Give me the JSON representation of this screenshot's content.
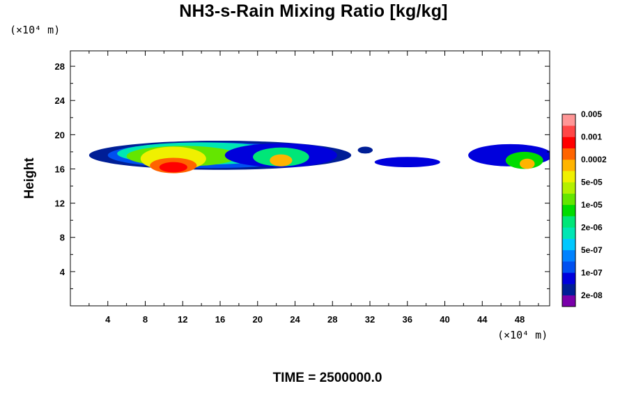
{
  "chart_data": {
    "type": "heatmap",
    "title": "NH3-s-Rain Mixing Ratio [kg/kg]",
    "ylabel": "Height",
    "xlabel": "",
    "x_unit": "(×10⁴ m)",
    "y_unit": "(×10⁴ m)",
    "footer": "TIME = 2500000.0",
    "xlim": [
      0,
      51.2
    ],
    "ylim": [
      0,
      29.8
    ],
    "x_ticks": [
      4,
      8,
      12,
      16,
      20,
      24,
      28,
      32,
      36,
      40,
      44,
      48
    ],
    "y_ticks": [
      4,
      8,
      12,
      16,
      20,
      24,
      28
    ],
    "colorbar": {
      "colors": [
        "#7a00aa",
        "#001e96",
        "#0000dc",
        "#0050f0",
        "#0082ff",
        "#00c8ff",
        "#00e6b4",
        "#00e678",
        "#00dc00",
        "#64e600",
        "#b4f000",
        "#f0f000",
        "#ffb400",
        "#ff6400",
        "#ff0000",
        "#ff4646",
        "#ff9696"
      ],
      "labels": [
        "2e-08",
        "1e-07",
        "5e-07",
        "2e-06",
        "1e-05",
        "5e-05",
        "0.0002",
        "0.001",
        "0.005"
      ]
    },
    "blobs": [
      {
        "x": 16,
        "y": 17.6,
        "rx": 14,
        "ry": 1.7,
        "level": 1
      },
      {
        "x": 15,
        "y": 17.6,
        "rx": 11,
        "ry": 1.5,
        "level": 3
      },
      {
        "x": 14,
        "y": 17.8,
        "rx": 9,
        "ry": 1.3,
        "level": 6
      },
      {
        "x": 12,
        "y": 17.5,
        "rx": 6,
        "ry": 1.2,
        "level": 9
      },
      {
        "x": 11,
        "y": 17.2,
        "rx": 3.5,
        "ry": 1.4,
        "level": 11
      },
      {
        "x": 11,
        "y": 16.4,
        "rx": 2.5,
        "ry": 0.9,
        "level": 13
      },
      {
        "x": 11,
        "y": 16.2,
        "rx": 1.5,
        "ry": 0.6,
        "level": 14
      },
      {
        "x": 22.5,
        "y": 17.6,
        "rx": 6,
        "ry": 1.4,
        "level": 2
      },
      {
        "x": 22.5,
        "y": 17.4,
        "rx": 3,
        "ry": 1.1,
        "level": 7
      },
      {
        "x": 22.5,
        "y": 17.0,
        "rx": 1.2,
        "ry": 0.7,
        "level": 12
      },
      {
        "x": 31.5,
        "y": 18.2,
        "rx": 0.8,
        "ry": 0.4,
        "level": 1
      },
      {
        "x": 36,
        "y": 16.8,
        "rx": 3.5,
        "ry": 0.6,
        "level": 2
      },
      {
        "x": 47,
        "y": 17.6,
        "rx": 4.5,
        "ry": 1.3,
        "level": 2
      },
      {
        "x": 48.5,
        "y": 17.0,
        "rx": 2,
        "ry": 1.0,
        "level": 8
      },
      {
        "x": 48.8,
        "y": 16.6,
        "rx": 0.8,
        "ry": 0.6,
        "level": 12
      }
    ]
  }
}
